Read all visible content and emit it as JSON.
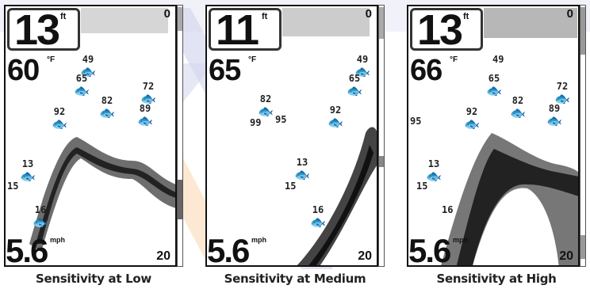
{
  "panels": [
    {
      "depth": "13",
      "depth_unit": "ft",
      "temp": "60",
      "temp_unit": "°F",
      "scale_top": "0",
      "scale_bottom": "20",
      "speed": "5.6",
      "speed_unit": "mph",
      "caption": "Sensitivity at Low",
      "fish_labels": [
        "49",
        "65",
        "72",
        "82",
        "92",
        "89",
        "13",
        "15",
        "16"
      ]
    },
    {
      "depth": "11",
      "depth_unit": "ft",
      "temp": "65",
      "temp_unit": "°F",
      "scale_top": "0",
      "scale_bottom": "20",
      "speed": "5.6",
      "speed_unit": "mph",
      "caption": "Sensitivity at Medium",
      "fish_labels": [
        "49",
        "65",
        "82",
        "92",
        "99",
        "95",
        "13",
        "15",
        "16"
      ]
    },
    {
      "depth": "13",
      "depth_unit": "ft",
      "temp": "66",
      "temp_unit": "°F",
      "scale_top": "0",
      "scale_bottom": "20",
      "speed": "5.6",
      "speed_unit": "mph",
      "caption": "Sensitivity at High",
      "fish_labels": [
        "49",
        "65",
        "72",
        "82",
        "89",
        "92",
        "95",
        "13",
        "15",
        "16"
      ]
    }
  ],
  "colors": {
    "watermark_blue": "#c9cde8",
    "watermark_orange": "#fbe0c3"
  }
}
